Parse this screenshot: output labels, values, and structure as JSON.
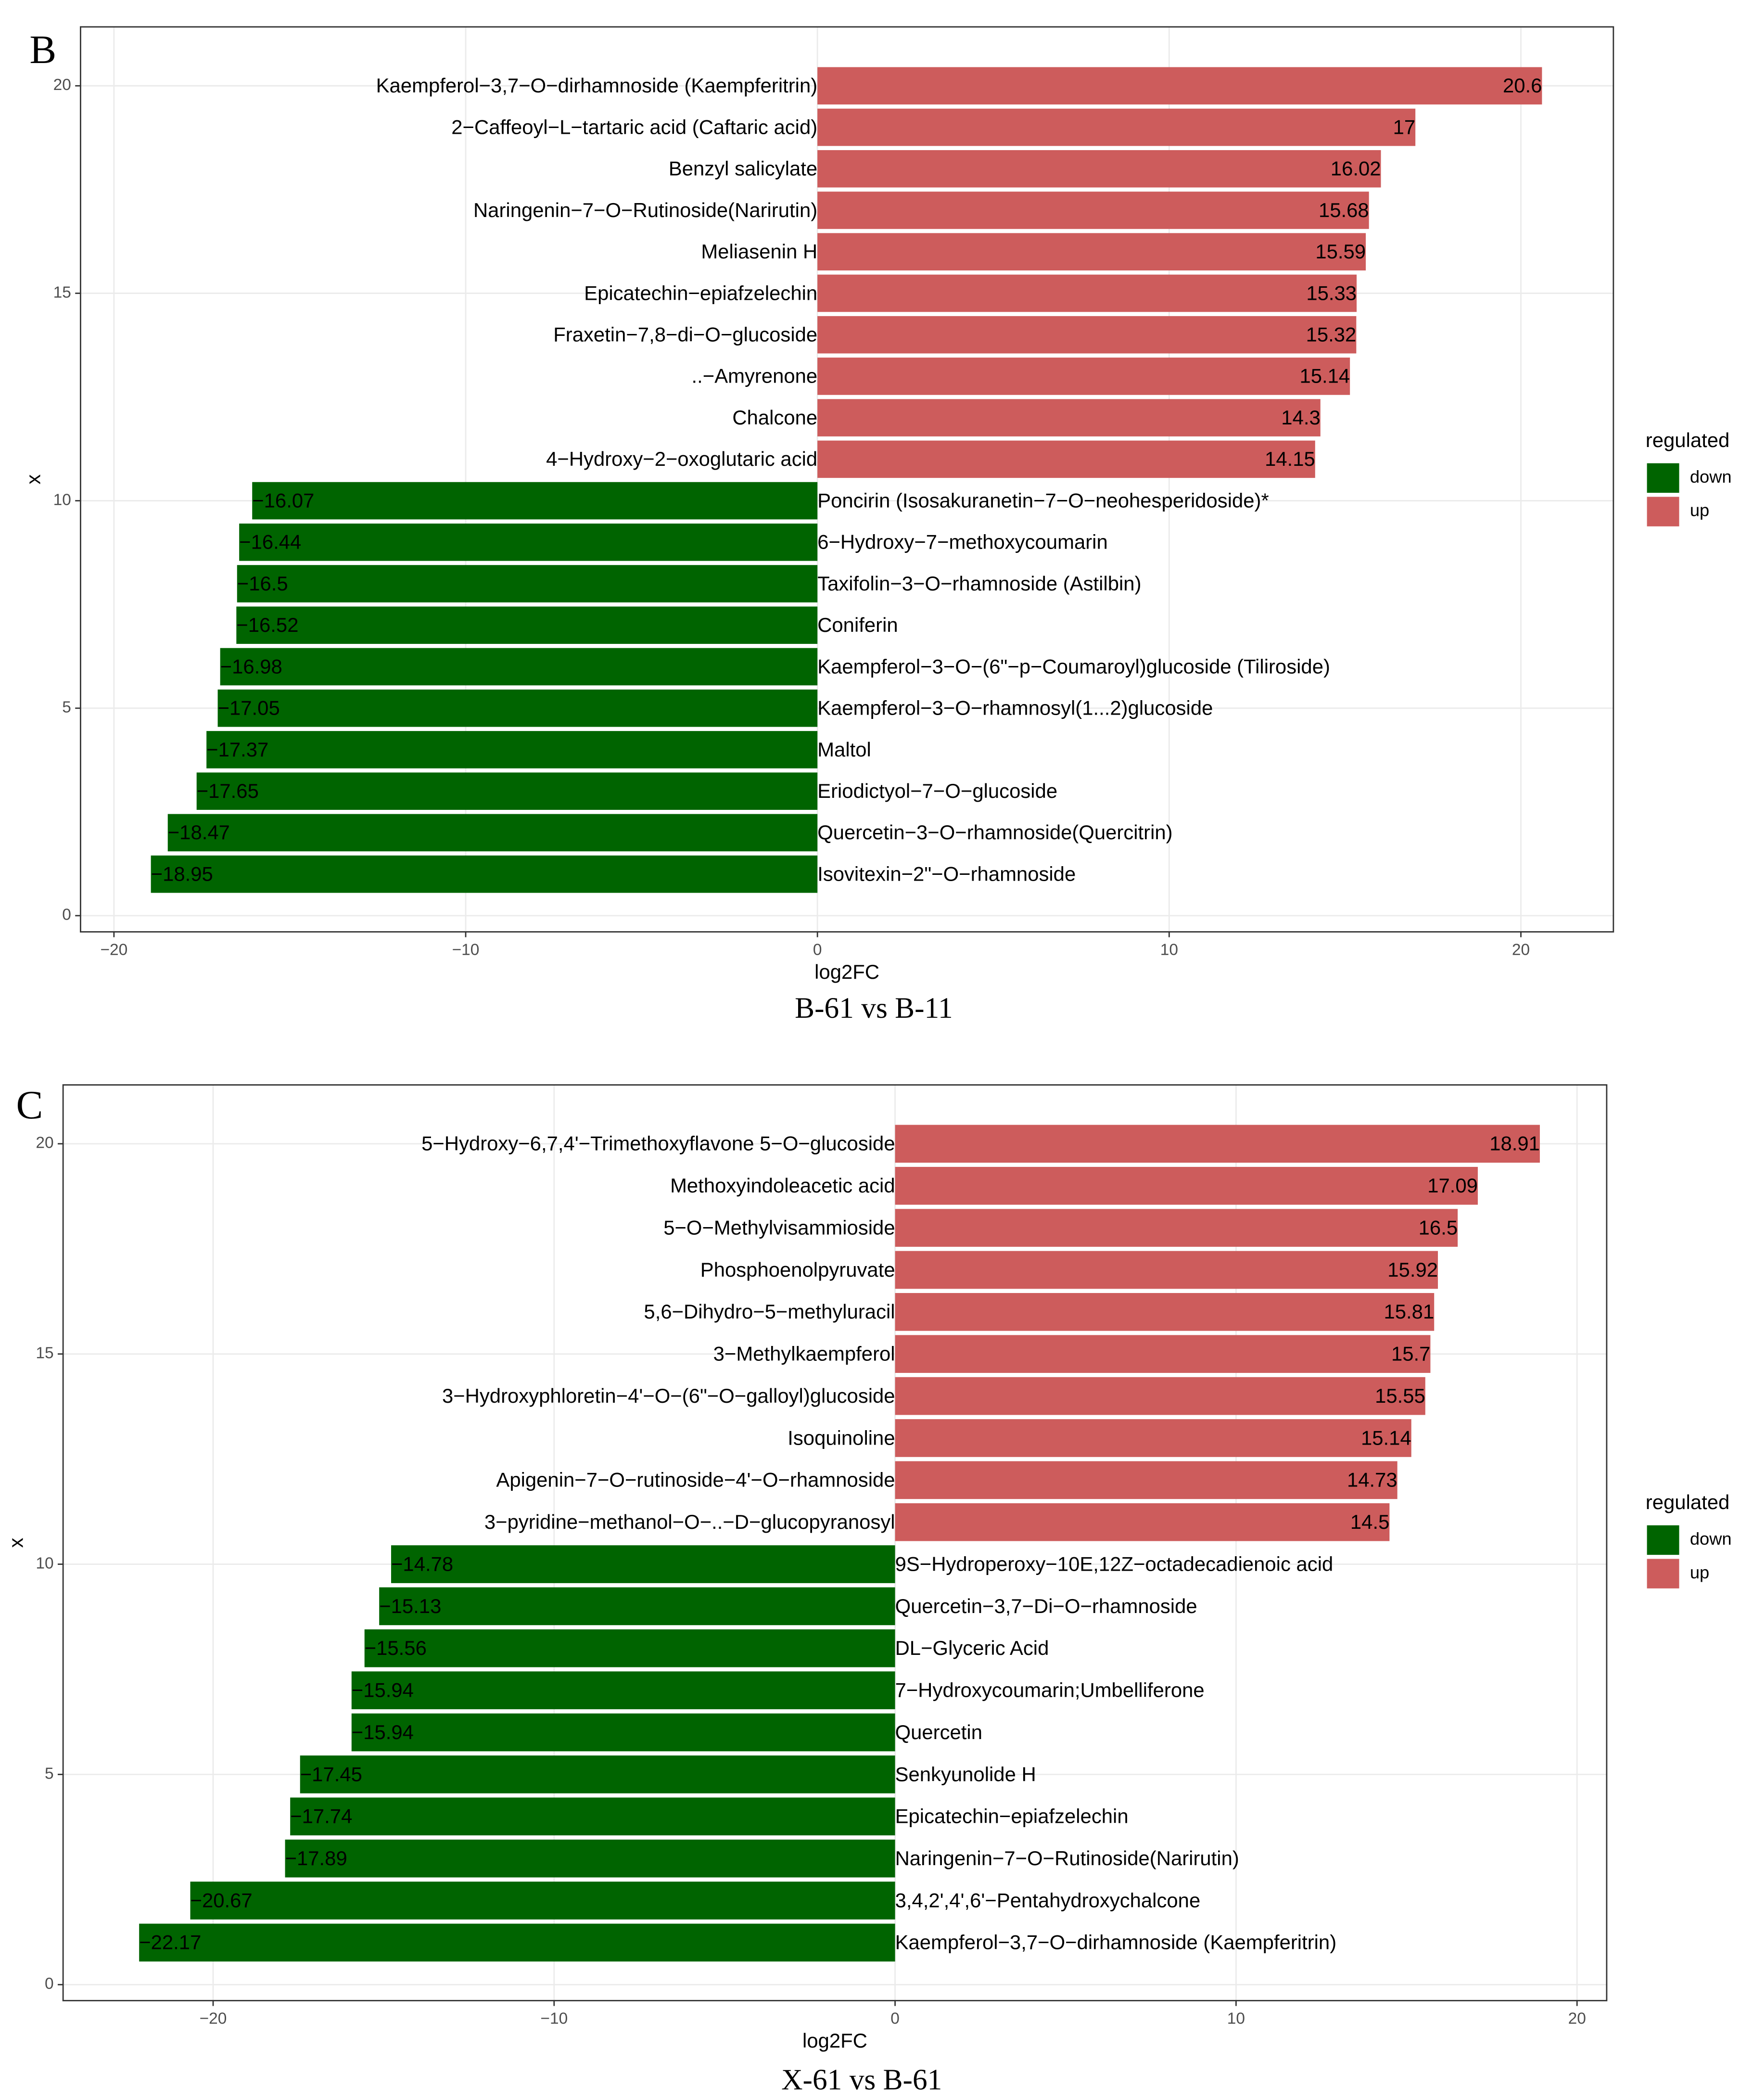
{
  "chart_data": [
    {
      "type": "bar",
      "panel": "B",
      "title": "B-61 vs B-11",
      "x_label": "log2FC",
      "y_label": "x",
      "legend_title": "regulated",
      "categories": [
        "Isovitexin−2\"−O−rhamnoside",
        "Quercetin−3−O−rhamnoside(Quercitrin)",
        "Eriodictyol−7−O−glucoside",
        "Maltol",
        "Kaempferol−3−O−rhamnosyl(1...2)glucoside",
        "Kaempferol−3−O−(6\"−p−Coumaroyl)glucoside (Tiliroside)",
        "Coniferin",
        "Taxifolin−3−O−rhamnoside (Astilbin)",
        "6−Hydroxy−7−methoxycoumarin",
        "Poncirin (Isosakuranetin−7−O−neohesperidoside)*",
        "4−Hydroxy−2−oxoglutaric acid",
        "Chalcone",
        "..−Amyrenone",
        "Fraxetin−7,8−di−O−glucoside",
        "Epicatechin−epiafzelechin",
        "Meliasenin H",
        "Naringenin−7−O−Rutinoside(Narirutin)",
        "Benzyl salicylate",
        "2−Caffeoyl−L−tartaric acid (Caftaric acid)",
        "Kaempferol−3,7−O−dirhamnoside (Kaempferitrin)"
      ],
      "y": [
        1,
        2,
        3,
        4,
        5,
        6,
        7,
        8,
        9,
        10,
        11,
        12,
        13,
        14,
        15,
        16,
        17,
        18,
        19,
        20
      ],
      "series": [
        {
          "name": "down",
          "color": "#006400",
          "values": [
            -18.95,
            -18.47,
            -17.65,
            -17.37,
            -17.05,
            -16.98,
            -16.52,
            -16.5,
            -16.44,
            -16.07,
            null,
            null,
            null,
            null,
            null,
            null,
            null,
            null,
            null,
            null
          ],
          "value_labels": [
            "−18.95",
            "−18.47",
            "−17.65",
            "−17.37",
            "−17.05",
            "−16.98",
            "−16.52",
            "−16.5",
            "−16.44",
            "−16.07",
            null,
            null,
            null,
            null,
            null,
            null,
            null,
            null,
            null,
            null
          ]
        },
        {
          "name": "up",
          "color": "#cd5c5c",
          "values": [
            null,
            null,
            null,
            null,
            null,
            null,
            null,
            null,
            null,
            null,
            14.15,
            14.3,
            15.14,
            15.32,
            15.33,
            15.59,
            15.68,
            16.02,
            17,
            20.6
          ]
        }
      ],
      "xlim": [
        -20.95,
        22.63
      ],
      "xticks": [
        {
          "value": -20,
          "label": "−20"
        },
        {
          "value": -10,
          "label": "−10"
        },
        0,
        10,
        20
      ],
      "ylim": [
        -0.39,
        21.42
      ],
      "yticks": [
        0,
        5,
        10,
        15,
        20
      ],
      "grid": true
    },
    {
      "type": "bar",
      "panel": "C",
      "title": "X-61 vs B-61",
      "x_label": "log2FC",
      "y_label": "x",
      "legend_title": "regulated",
      "categories": [
        "Kaempferol−3,7−O−dirhamnoside (Kaempferitrin)",
        "3,4,2',4',6'−Pentahydroxychalcone",
        "Naringenin−7−O−Rutinoside(Narirutin)",
        "Epicatechin−epiafzelechin",
        "Senkyunolide H",
        "Quercetin",
        "7−Hydroxycoumarin;Umbelliferone",
        "DL−Glyceric Acid",
        "Quercetin−3,7−Di−O−rhamnoside",
        "9S−Hydroperoxy−10E,12Z−octadecadienoic acid",
        "3−pyridine−methanol−O−..−D−glucopyranosyl",
        "Apigenin−7−O−rutinoside−4'−O−rhamnoside",
        "Isoquinoline",
        "3−Hydroxyphloretin−4'−O−(6\"−O−galloyl)glucoside",
        "3−Methylkaempferol",
        "5,6−Dihydro−5−methyluracil",
        "Phosphoenolpyruvate",
        "5−O−Methylvisammioside",
        "Methoxyindoleacetic acid",
        "5−Hydroxy−6,7,4'−Trimethoxyflavone 5−O−glucoside"
      ],
      "y": [
        1,
        2,
        3,
        4,
        5,
        6,
        7,
        8,
        9,
        10,
        11,
        12,
        13,
        14,
        15,
        16,
        17,
        18,
        19,
        20
      ],
      "series": [
        {
          "name": "down",
          "color": "#006400",
          "values": [
            -22.17,
            -20.67,
            -17.89,
            -17.74,
            -17.45,
            -15.94,
            -15.94,
            -15.56,
            -15.13,
            -14.78,
            null,
            null,
            null,
            null,
            null,
            null,
            null,
            null,
            null,
            null
          ],
          "value_labels": [
            "−22.17",
            "−20.67",
            "−17.89",
            "−17.74",
            "−17.45",
            "−15.94",
            "−15.94",
            "−15.56",
            "−15.13",
            "−14.78",
            null,
            null,
            null,
            null,
            null,
            null,
            null,
            null,
            null,
            null
          ]
        },
        {
          "name": "up",
          "color": "#cd5c5c",
          "values": [
            null,
            null,
            null,
            null,
            null,
            null,
            null,
            null,
            null,
            null,
            14.5,
            14.73,
            15.14,
            15.55,
            15.7,
            15.81,
            15.92,
            16.5,
            17.09,
            18.91
          ]
        }
      ],
      "xlim": [
        -24.4,
        20.87
      ],
      "xticks": [
        {
          "value": -20,
          "label": "−20"
        },
        {
          "value": -10,
          "label": "−10"
        },
        0,
        10,
        20
      ],
      "ylim": [
        -0.38,
        21.4
      ],
      "yticks": [
        0,
        5,
        10,
        15,
        20
      ],
      "grid": true
    }
  ]
}
